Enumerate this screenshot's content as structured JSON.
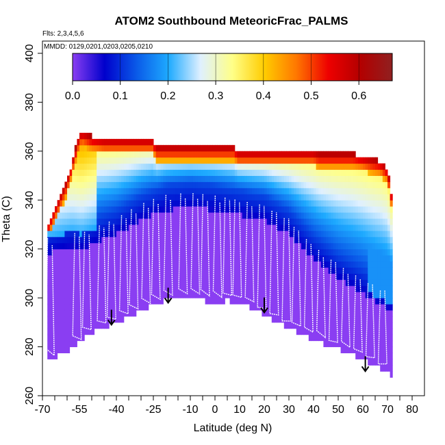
{
  "chart_data": {
    "type": "heatmap",
    "title": "ATOM2 Southbound MeteoricFrac_PALMS",
    "flights_note": "Flts: 2,3,4,5,6",
    "dates_note": "MMDD: 0129,0201,0203,0205,0210",
    "xlabel": "Latitude (deg N)",
    "ylabel": "Theta (C)",
    "xlim": [
      -70,
      85
    ],
    "ylim": [
      260,
      405
    ],
    "x_ticks": [
      -70,
      -55,
      -40,
      -25,
      -10,
      0,
      10,
      20,
      30,
      40,
      50,
      60,
      70,
      80
    ],
    "x_tick_labels": [
      "-70",
      "-55",
      "-40",
      "-25",
      "-10",
      "0",
      "10",
      "20",
      "30",
      "40",
      "50",
      "60",
      "70",
      "80"
    ],
    "x_minor_ticks": [
      -65,
      -60,
      -50,
      -45,
      -35,
      -30,
      -20,
      -15,
      -5,
      5,
      15,
      25,
      35,
      45,
      55,
      65,
      75
    ],
    "y_ticks": [
      260,
      280,
      300,
      320,
      340,
      360,
      380,
      400
    ],
    "y_tick_labels": [
      "260",
      "280",
      "300",
      "320",
      "340",
      "360",
      "380",
      "400"
    ],
    "colorbar": {
      "label_values": [
        0.0,
        0.1,
        0.2,
        0.3,
        0.4,
        0.5,
        0.6
      ],
      "tick_labels": [
        "0.0",
        "0.1",
        "0.2",
        "0.3",
        "0.4",
        "0.5",
        "0.6"
      ],
      "range": [
        0.0,
        0.67
      ],
      "colors": [
        "#8a3ef2",
        "#0000cc",
        "#0a5ae8",
        "#1eaaff",
        "#dff0ff",
        "#ffff88",
        "#ffcc00",
        "#ff7700",
        "#ee0000",
        "#b30000",
        "#902020"
      ]
    },
    "profile_bottom_boundary": {
      "latitude": [
        -68,
        -64,
        -57,
        -52,
        -48,
        -40,
        -30,
        -20,
        -10,
        -5,
        0,
        5,
        10,
        15,
        20,
        30,
        40,
        50,
        60,
        66,
        70,
        72
      ],
      "theta": [
        274,
        276,
        280,
        285,
        287,
        290,
        295,
        299,
        300,
        299,
        298,
        299,
        298,
        296,
        293,
        288,
        283,
        279,
        275,
        272,
        270,
        268
      ]
    },
    "profile_top_boundary": {
      "latitude": [
        -68,
        -60,
        -55,
        -54,
        -50,
        -45,
        -40,
        -30,
        -25,
        -24,
        8,
        9,
        40,
        42,
        56,
        60,
        63,
        67,
        70,
        72
      ],
      "theta": [
        330,
        348,
        367,
        368,
        366,
        365,
        365,
        365,
        365,
        362,
        362,
        360,
        360,
        359,
        359,
        358,
        357,
        356,
        353,
        340
      ]
    },
    "tropopause_line": {
      "latitude": [
        -68,
        -62,
        -58,
        -54,
        -50,
        -45,
        -40,
        -30,
        -20,
        -10,
        0,
        10,
        20,
        30,
        40,
        50,
        60,
        66,
        70
      ],
      "theta": [
        328,
        330,
        331,
        330,
        332,
        334,
        336,
        342,
        346,
        347,
        346,
        344,
        342,
        336,
        326,
        318,
        312,
        308,
        306
      ]
    },
    "profile_latitudes": [
      -67,
      -56,
      -52,
      -46,
      -42,
      -37,
      -33,
      -28,
      -24,
      -19,
      -13,
      -8,
      -4,
      1,
      5,
      9,
      14,
      19,
      24,
      29,
      33,
      38,
      43,
      48,
      53,
      58,
      63,
      68
    ],
    "arrows": [
      {
        "latitude": -42,
        "theta": 289
      },
      {
        "latitude": -19,
        "theta": 298
      },
      {
        "latitude": 20,
        "theta": 294
      },
      {
        "latitude": 61,
        "theta": 270
      }
    ]
  }
}
